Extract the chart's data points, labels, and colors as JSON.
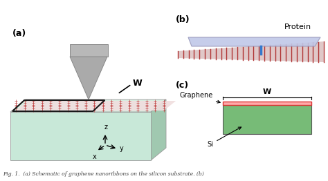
{
  "fig_width": 4.74,
  "fig_height": 2.62,
  "dpi": 100,
  "bg_color": "#ffffff",
  "caption": "Fig. 1.  (a) Schematic of graphene nanoribbons on the silicon substrate. (b)",
  "panel_a": {
    "label": "(a)",
    "substrate_color": "#c8e8d8",
    "substrate_top_color": "#d8ede0",
    "substrate_side_color": "#a0c8b0",
    "substrate_edge": "#999999",
    "ribbon_color": "#bb3333",
    "ribbon_bg": "#f0dede",
    "box_color": "#222222",
    "tip_color": "#b0b0b0",
    "tip_dark": "#888888",
    "W_label": "W"
  },
  "panel_b": {
    "label": "(b)",
    "protein_label": "Protein",
    "protein_color": "#c0c8e8",
    "protein_edge": "#9999bb",
    "ribbon_color": "#aa2222",
    "ribbon_bg": "#e0c8c8",
    "connector_color": "#3377cc"
  },
  "panel_c": {
    "label": "(c)",
    "graphene_label": "Graphene",
    "si_label": "Si",
    "W_label": "W",
    "si_color": "#77bb77",
    "si_edge": "#555555",
    "graphene_color": "#dd3333",
    "graphene_top_color": "#ffaaaa"
  }
}
